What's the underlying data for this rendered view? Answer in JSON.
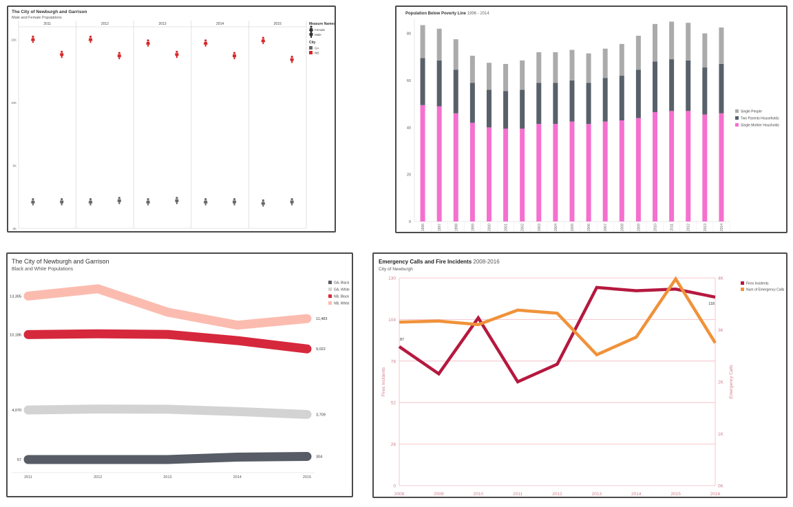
{
  "chart_data": [
    {
      "type": "scatter",
      "title": "The City of Newburgh and Garrison",
      "subtitle": "Male and Female Populations",
      "facets": [
        "2011",
        "2012",
        "2013",
        "2014",
        "2015"
      ],
      "y_ticks": [
        "0K",
        "5K",
        "10K",
        "15K"
      ],
      "ylim": [
        0,
        16000
      ],
      "legend": {
        "measure_title": "Measure Names",
        "measures": [
          "Female",
          "Male"
        ],
        "city_title": "City",
        "cities": [
          "GA",
          "NB"
        ]
      },
      "series": [
        {
          "name": "NB",
          "color": "#d62728",
          "female": [
            15000,
            15000,
            14700,
            14700,
            14900
          ],
          "male": [
            13800,
            13700,
            13800,
            13700,
            13400
          ]
        },
        {
          "name": "GA",
          "color": "#666666",
          "female": [
            2100,
            2100,
            2100,
            2100,
            2000
          ],
          "male": [
            2100,
            2200,
            2200,
            2100,
            2100
          ]
        }
      ]
    },
    {
      "type": "bar",
      "stacked": true,
      "title": "Population Below Poverty Line",
      "title_suffix": "1996 - 2014",
      "categories": [
        "1996",
        "1997",
        "1998",
        "1999",
        "2000",
        "2001",
        "2002",
        "2003",
        "2004",
        "2005",
        "2006",
        "2007",
        "2008",
        "2009",
        "2010",
        "2011",
        "2012",
        "2013",
        "2014"
      ],
      "y_ticks": [
        0,
        20,
        40,
        60,
        80
      ],
      "ylim": [
        0,
        86
      ],
      "legend": [
        "Single People",
        "Two Parents Households",
        "Single Mother Housholds"
      ],
      "series": [
        {
          "name": "Single Mother Housholds",
          "color": "#f570cf",
          "values": [
            49.5,
            49,
            46,
            42,
            40,
            39.5,
            39.5,
            41.5,
            41.5,
            42.5,
            41.5,
            42.5,
            43,
            44,
            46.5,
            47,
            47,
            45.5,
            46
          ]
        },
        {
          "name": "Two Parents Households",
          "color": "#58606a",
          "values": [
            20,
            19.5,
            18.5,
            17,
            16,
            16,
            16.5,
            17.5,
            17.5,
            17.5,
            17.5,
            18.5,
            19,
            20.5,
            21.5,
            22,
            21.5,
            20,
            21
          ]
        },
        {
          "name": "Single People",
          "color": "#ababab",
          "values": [
            14,
            13.5,
            13,
            11.5,
            11.5,
            11.5,
            12.5,
            13,
            13,
            13,
            12.5,
            12.5,
            13.5,
            14.5,
            16,
            16,
            16,
            14.5,
            15.5
          ]
        }
      ]
    },
    {
      "type": "line",
      "title": "The City of Newburgh and Garrison",
      "subtitle": "Black and White Populations",
      "x": [
        "2011",
        "2012",
        "2013",
        "2014",
        "2015"
      ],
      "ylim": [
        0,
        14500
      ],
      "legend": [
        "GA, Black",
        "GA, White",
        "NB, Black",
        "NB, White"
      ],
      "series": [
        {
          "name": "GA, Black",
          "color": "#575c66",
          "values": [
            57,
            57,
            57,
            250,
            304
          ],
          "start_label": "57",
          "end_label": "304"
        },
        {
          "name": "GA, White",
          "color": "#d3d3d3",
          "values": [
            4070,
            4150,
            4130,
            3950,
            3709
          ],
          "start_label": "4,070",
          "end_label": "3,709"
        },
        {
          "name": "NB, Black",
          "color": "#d6283c",
          "values": [
            10186,
            10250,
            10200,
            9700,
            9022
          ],
          "start_label": "10,186",
          "end_label": "9,022"
        },
        {
          "name": "NB, White",
          "color": "#fbbcaf",
          "values": [
            13305,
            13900,
            12000,
            10950,
            11483
          ],
          "start_label": "13,305",
          "end_label": "11,483"
        }
      ]
    },
    {
      "type": "line",
      "dual_axis": true,
      "title": "Emergency Calls and Fire Incidents",
      "title_suffix": "2008-2016",
      "subtitle": "City of Newburgh",
      "x": [
        "2008",
        "2009",
        "2010",
        "2011",
        "2012",
        "2013",
        "2014",
        "2015",
        "2016"
      ],
      "left_axis": {
        "label": "Fires Incidents",
        "ticks": [
          0,
          26,
          52,
          78,
          104,
          130
        ],
        "ylim": [
          0,
          130
        ]
      },
      "right_axis": {
        "label": "Emergency Calls",
        "ticks": [
          "0K",
          "1K",
          "2K",
          "3K",
          "4K"
        ],
        "ylim": [
          0,
          4000
        ]
      },
      "legend": [
        "Fires Incidents",
        "Num of Emergency Calls"
      ],
      "series": [
        {
          "name": "Fires Incidents",
          "axis": "left",
          "color": "#b5193f",
          "values": [
            87,
            70,
            105,
            65,
            76,
            124,
            122,
            123,
            118
          ],
          "start_label": "87",
          "end_label": "118"
        },
        {
          "name": "Num of Emergency Calls",
          "axis": "right",
          "color": "#f0923a",
          "values": [
            3150,
            3170,
            3100,
            3380,
            3320,
            2520,
            2860,
            3980,
            2750
          ]
        }
      ]
    }
  ]
}
